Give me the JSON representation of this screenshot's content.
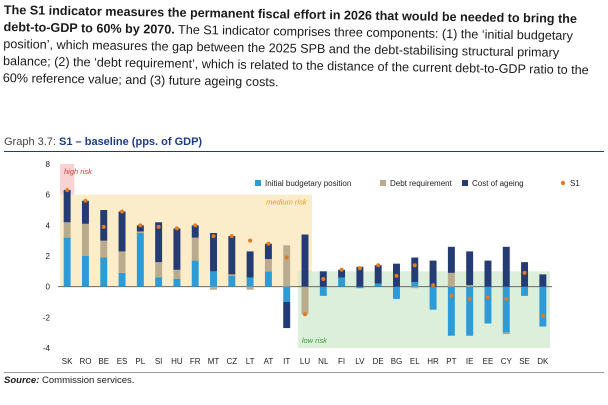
{
  "intro": {
    "bold": "The S1 indicator measures the permanent fiscal effort in 2026 that would be needed to bring the debt-to-GDP to 60% by 2070.",
    "text": " The S1 indicator comprises three components: (1) the ‘initial budgetary position’, which measures the gap between the 2025 SPB and the debt-stabilising structural primary balance; (2) the ‘debt requirement’, which is related to the distance of the current debt-to-GDP ratio to the 60% reference value; and (3) future ageing costs."
  },
  "graph": {
    "label": "Graph 3.7:",
    "title": "S1 – baseline (pps. of GDP)"
  },
  "source": {
    "label": "Source:",
    "text": "Commission services."
  },
  "colors": {
    "ibp": "#2e9bd6",
    "debt": "#b9ab8e",
    "ageing": "#253b73",
    "s1": "#e07b22",
    "high": "#f6c4c6",
    "medium": "#fbe7b8",
    "low": "#cfe9cf"
  },
  "chart_data": {
    "type": "bar",
    "stacked": true,
    "ylim": [
      -4,
      8
    ],
    "yticks": [
      -4,
      -2,
      0,
      2,
      4,
      6,
      8
    ],
    "categories": [
      "SK",
      "RO",
      "BE",
      "ES",
      "PL",
      "SI",
      "HU",
      "FR",
      "MT",
      "CZ",
      "LT",
      "AT",
      "IT",
      "LU",
      "NL",
      "FI",
      "LV",
      "DE",
      "BG",
      "EL",
      "HR",
      "PT",
      "IE",
      "EE",
      "CY",
      "SE",
      "DK"
    ],
    "series": [
      {
        "name": "Initial budgetary position",
        "values": [
          3.2,
          2.0,
          1.9,
          0.9,
          3.5,
          0.6,
          0.5,
          1.7,
          1.0,
          0.7,
          0.6,
          1.0,
          -1.0,
          0.0,
          -0.6,
          0.6,
          -0.1,
          0.2,
          -0.8,
          0.3,
          -1.5,
          -3.2,
          -3.2,
          -2.4,
          -3.0,
          -0.6,
          -2.6
        ]
      },
      {
        "name": "Debt requirement",
        "values": [
          1.0,
          2.1,
          1.1,
          1.4,
          0.1,
          1.0,
          0.6,
          1.5,
          -0.2,
          0.1,
          -0.2,
          0.8,
          2.7,
          -1.8,
          0.0,
          0.0,
          0.0,
          0.0,
          0.0,
          -0.1,
          0.0,
          0.9,
          0.1,
          0.0,
          -0.1,
          0.0,
          0.0
        ]
      },
      {
        "name": "Cost of ageing",
        "values": [
          2.1,
          1.5,
          2.0,
          2.6,
          0.4,
          2.6,
          2.7,
          0.8,
          2.5,
          2.5,
          1.7,
          1.0,
          -1.7,
          3.4,
          1.0,
          0.5,
          1.3,
          1.2,
          1.5,
          1.6,
          1.7,
          1.7,
          2.2,
          1.7,
          2.6,
          1.6,
          0.8
        ]
      }
    ],
    "s1": [
      6.3,
      5.6,
      3.9,
      4.9,
      4.0,
      3.9,
      3.8,
      4.0,
      3.3,
      3.3,
      3.0,
      2.8,
      1.9,
      -1.8,
      0.5,
      1.1,
      1.2,
      1.4,
      0.7,
      1.4,
      0.1,
      -0.6,
      -0.8,
      -0.7,
      -0.8,
      0.9,
      -1.9
    ],
    "zones": [
      {
        "label": "high risk",
        "from": "SK",
        "to": "SK",
        "ymin": 6,
        "ymax": 8
      },
      {
        "label": "medium risk",
        "from": "SK",
        "to": "LU",
        "ymin": 0,
        "ymax": 6
      },
      {
        "label": "low risk",
        "from": "LU",
        "to": "DK",
        "ymin": -4,
        "ymax": 1
      }
    ],
    "legend": [
      "Initial budgetary position",
      "Debt requirement",
      "Cost of ageing",
      "S1"
    ]
  }
}
